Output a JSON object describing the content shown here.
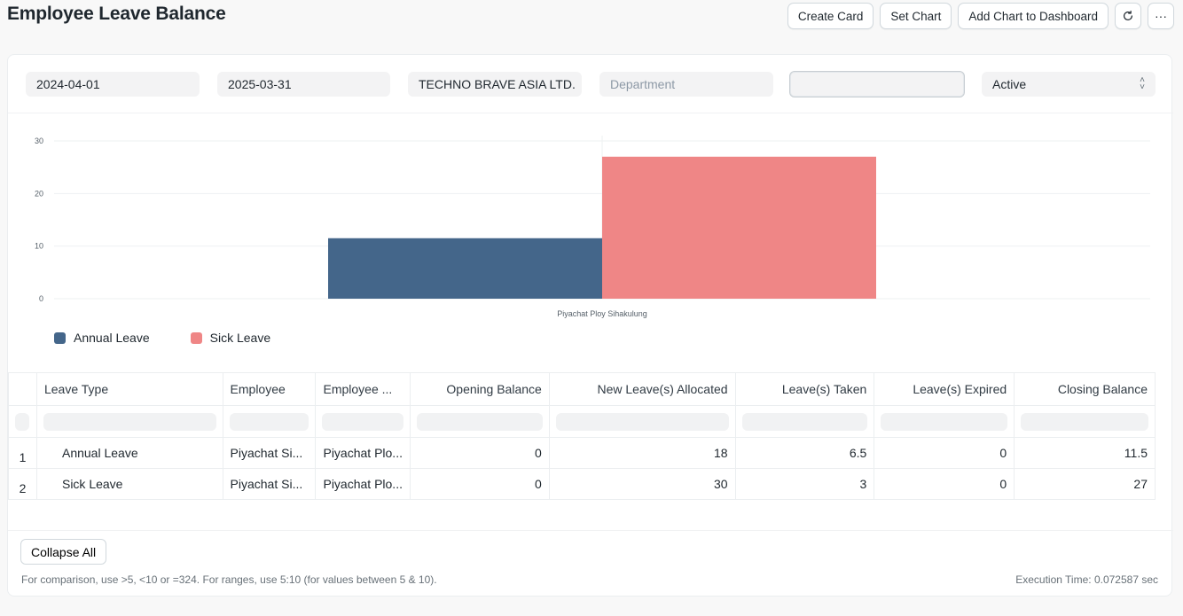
{
  "page": {
    "title": "Employee Leave Balance",
    "actions": {
      "create_card": "Create Card",
      "set_chart": "Set Chart",
      "add_to_dashboard": "Add Chart to Dashboard",
      "refresh_icon": "refresh-icon",
      "more_icon": "more-icon",
      "more_glyph": "···"
    }
  },
  "filters": {
    "from_date": "2024-04-01",
    "to_date": "2025-03-31",
    "company": "TECHNO BRAVE ASIA LTD.",
    "department_placeholder": "Department",
    "employee": "",
    "status": "Active"
  },
  "chart_data": {
    "type": "bar",
    "categories": [
      "Piyachat Ploy Sihakulung"
    ],
    "series": [
      {
        "name": "Annual Leave",
        "values": [
          11.5
        ],
        "color": "#44668a"
      },
      {
        "name": "Sick Leave",
        "values": [
          27
        ],
        "color": "#ef8686"
      }
    ],
    "yticks": [
      0,
      10,
      20,
      30
    ],
    "ylim": [
      0,
      30
    ],
    "legend": "bottom-left"
  },
  "table": {
    "columns": [
      "Leave Type",
      "Employee",
      "Employee ...",
      "Opening Balance",
      "New Leave(s) Allocated",
      "Leave(s) Taken",
      "Leave(s) Expired",
      "Closing Balance"
    ],
    "rows": [
      {
        "num": "1",
        "leave_type": "Annual Leave",
        "employee": "Piyachat Si...",
        "employee_name": "Piyachat Plo...",
        "opening": "0",
        "allocated": "18",
        "taken": "6.5",
        "expired": "0",
        "closing": "11.5"
      },
      {
        "num": "2",
        "leave_type": "Sick Leave",
        "employee": "Piyachat Si...",
        "employee_name": "Piyachat Plo...",
        "opening": "0",
        "allocated": "30",
        "taken": "3",
        "expired": "0",
        "closing": "27"
      }
    ]
  },
  "footer": {
    "collapse_all": "Collapse All",
    "hint": "For comparison, use >5, <10 or =324. For ranges, use 5:10 (for values between 5 & 10).",
    "execution_time": "Execution Time: 0.072587 sec"
  }
}
